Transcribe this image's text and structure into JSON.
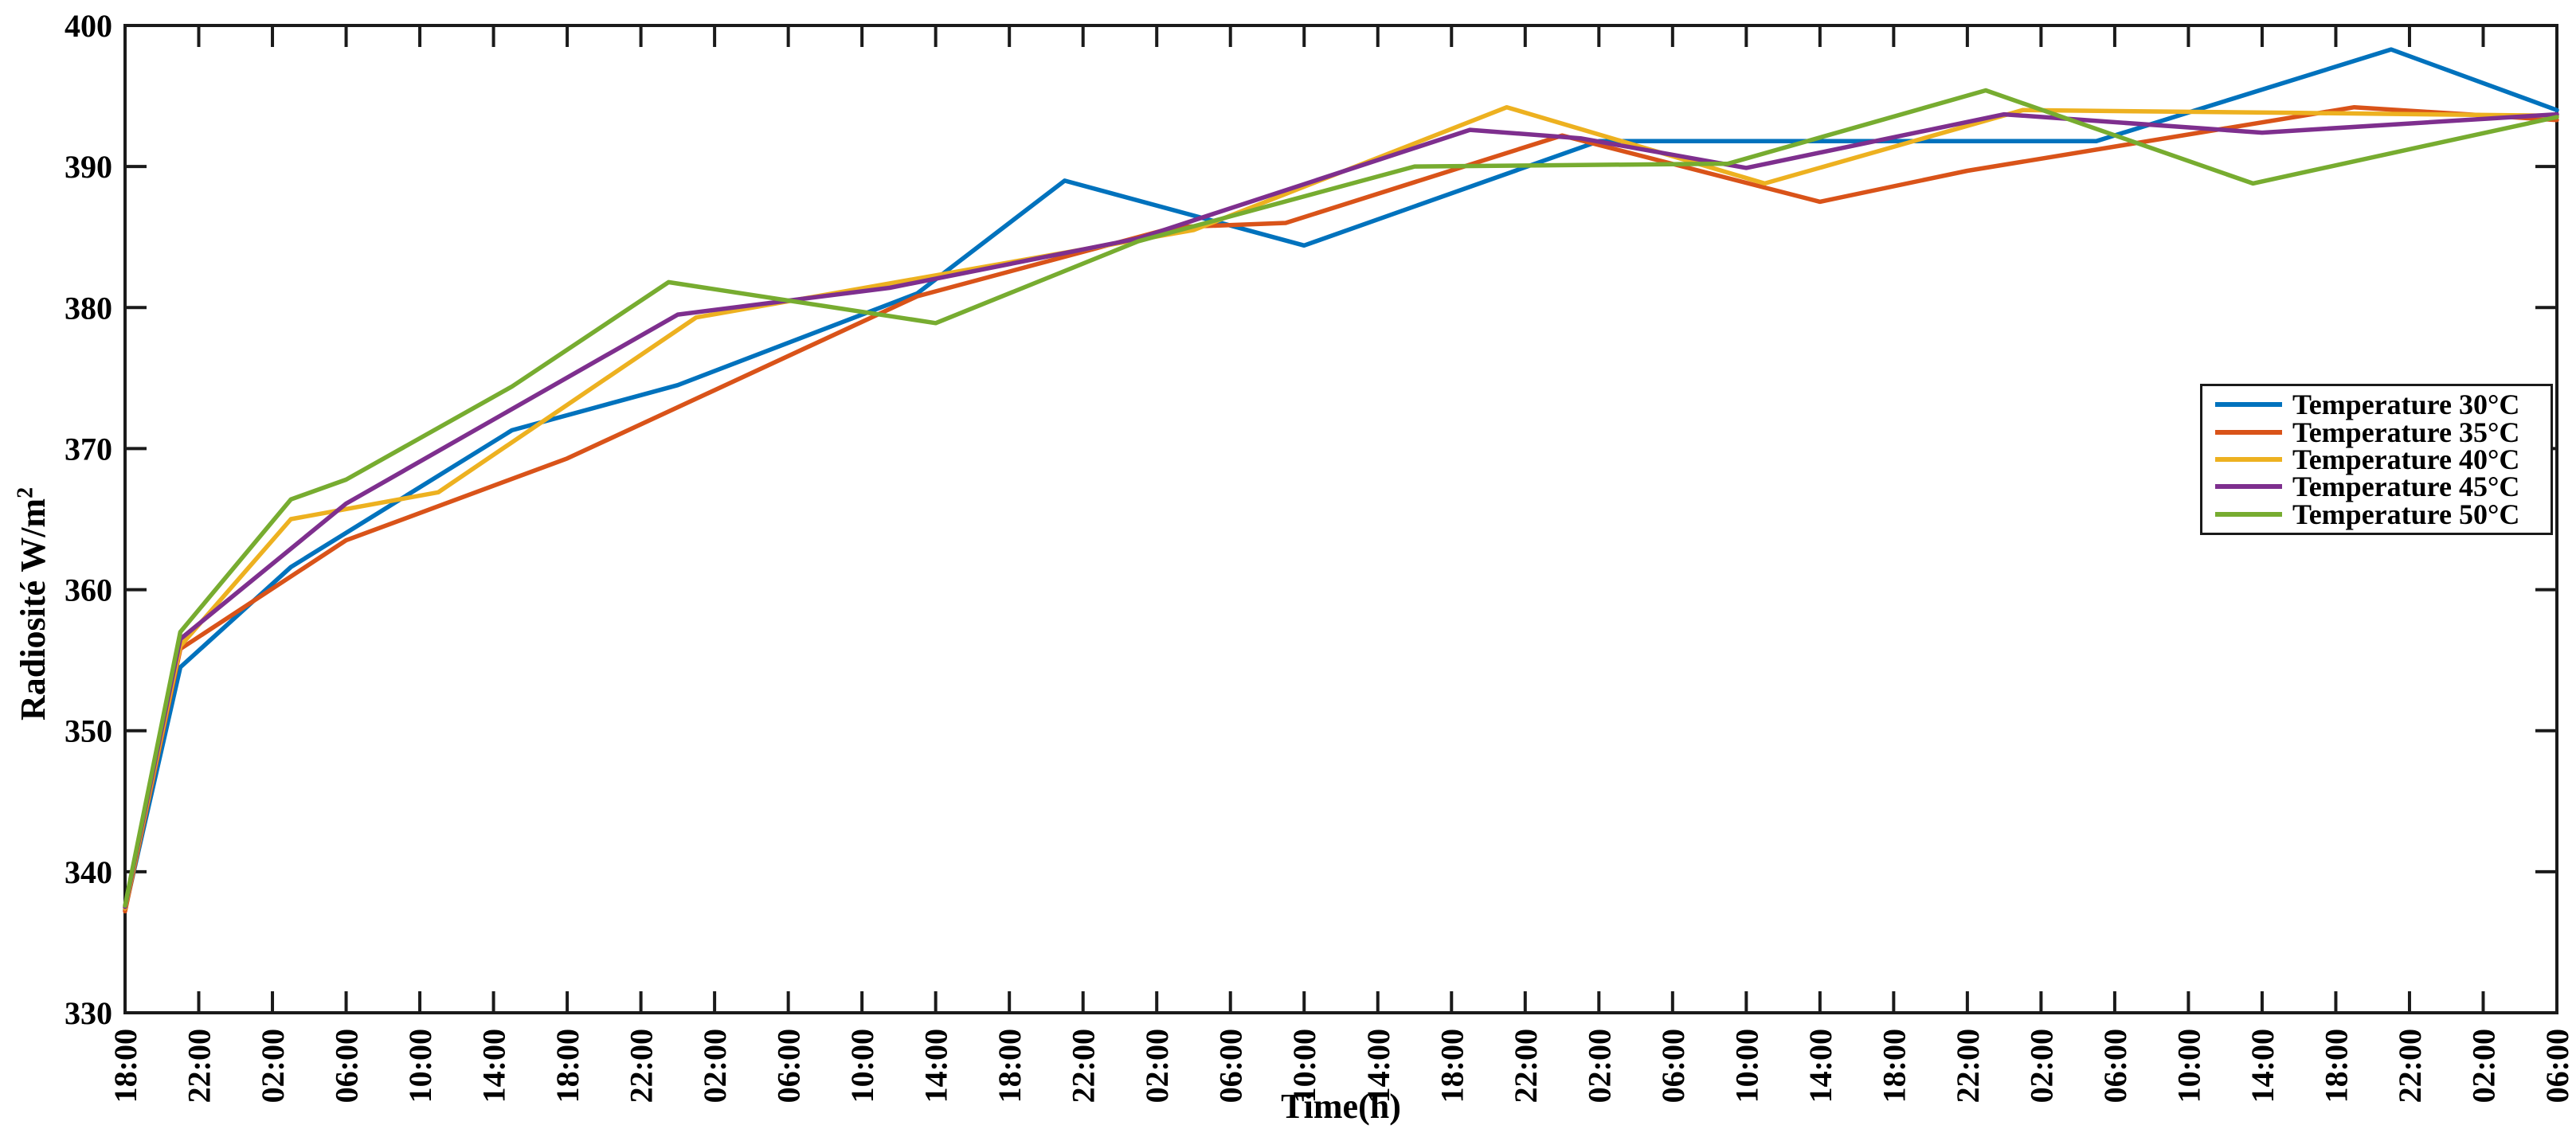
{
  "chart_data": {
    "type": "line",
    "title": "",
    "xlabel": "Time(h)",
    "ylabel": "Radiosité W/m",
    "ylabel_superscript": "2",
    "ylim": [
      330,
      400
    ],
    "y_ticks": [
      330,
      340,
      350,
      360,
      370,
      380,
      390,
      400
    ],
    "x_span_hours": 132,
    "x_tick_interval_hours": 4,
    "x_tick_labels": [
      "18:00",
      "22:00",
      "02:00",
      "06:00",
      "10:00",
      "14:00",
      "18:00",
      "22:00",
      "02:00",
      "06:00",
      "10:00",
      "14:00",
      "18:00",
      "22:00",
      "02:00",
      "06:00",
      "10:00",
      "14:00",
      "18:00",
      "22:00",
      "02:00",
      "06:00",
      "10:00",
      "14:00",
      "18:00",
      "22:00",
      "02:00",
      "06:00",
      "10:00",
      "14:00",
      "18:00",
      "22:00",
      "02:00",
      "06:00"
    ],
    "grid": false,
    "legend_position": "right-middle",
    "axis_color": "#1a1a1a",
    "series": [
      {
        "name": "Temperature 30°C",
        "color": "#0072BD",
        "points": [
          [
            0,
            337.3
          ],
          [
            3,
            354.5
          ],
          [
            9,
            361.6
          ],
          [
            21,
            371.3
          ],
          [
            30,
            374.5
          ],
          [
            43,
            381.0
          ],
          [
            51,
            389.0
          ],
          [
            64,
            384.4
          ],
          [
            80,
            391.8
          ],
          [
            107,
            391.8
          ],
          [
            123,
            398.3
          ],
          [
            132,
            394.0
          ]
        ]
      },
      {
        "name": "Temperature 35°C",
        "color": "#D95319",
        "points": [
          [
            0,
            337.2
          ],
          [
            3,
            355.8
          ],
          [
            12,
            363.5
          ],
          [
            24,
            369.3
          ],
          [
            43,
            380.8
          ],
          [
            57,
            385.7
          ],
          [
            63,
            386.0
          ],
          [
            78,
            392.2
          ],
          [
            92,
            387.5
          ],
          [
            100,
            389.7
          ],
          [
            121,
            394.2
          ],
          [
            132,
            393.3
          ]
        ]
      },
      {
        "name": "Temperature 40°C",
        "color": "#EDB120",
        "points": [
          [
            0,
            337.4
          ],
          [
            3,
            356.0
          ],
          [
            9,
            365.0
          ],
          [
            17,
            366.9
          ],
          [
            31,
            379.3
          ],
          [
            58,
            385.5
          ],
          [
            75,
            394.2
          ],
          [
            89,
            388.8
          ],
          [
            103,
            394.0
          ],
          [
            118,
            393.8
          ],
          [
            132,
            393.6
          ]
        ]
      },
      {
        "name": "Temperature 45°C",
        "color": "#7E2F8E",
        "points": [
          [
            0,
            337.5
          ],
          [
            3,
            356.5
          ],
          [
            12,
            366.1
          ],
          [
            30,
            379.5
          ],
          [
            41.5,
            381.4
          ],
          [
            55,
            384.9
          ],
          [
            73,
            392.6
          ],
          [
            79,
            392.0
          ],
          [
            88,
            389.9
          ],
          [
            102,
            393.7
          ],
          [
            116,
            392.4
          ],
          [
            132,
            393.7
          ]
        ]
      },
      {
        "name": "Temperature 50°C",
        "color": "#77AC30",
        "points": [
          [
            0,
            337.6
          ],
          [
            3,
            357.0
          ],
          [
            9,
            366.4
          ],
          [
            12,
            367.8
          ],
          [
            21,
            374.4
          ],
          [
            29.5,
            381.8
          ],
          [
            44,
            378.9
          ],
          [
            55,
            384.7
          ],
          [
            70,
            390.0
          ],
          [
            87,
            390.2
          ],
          [
            101,
            395.4
          ],
          [
            115.5,
            388.8
          ],
          [
            132,
            393.5
          ]
        ]
      }
    ]
  }
}
